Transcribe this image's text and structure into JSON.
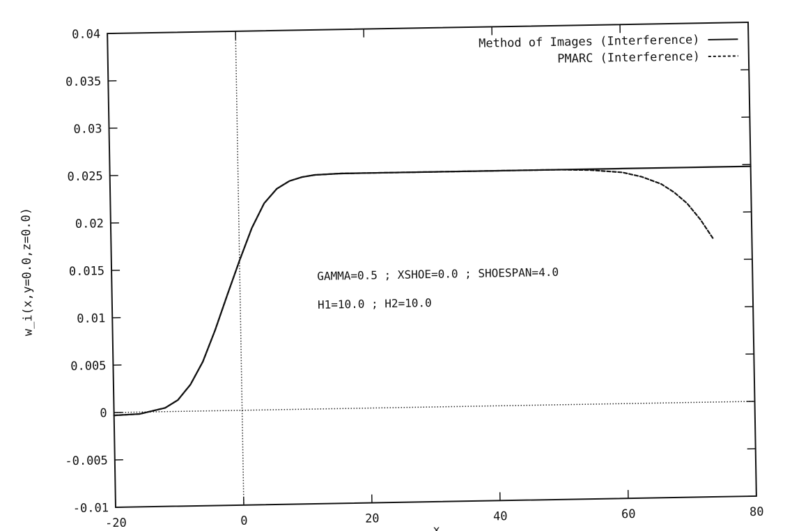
{
  "chart_data": {
    "type": "line",
    "title": "",
    "xlabel": "x",
    "ylabel": "w_i(x,y=0.0,z=0.0)",
    "xlim": [
      -20,
      80
    ],
    "ylim": [
      -0.01,
      0.04
    ],
    "x_ticks": [
      {
        "value": -20,
        "label": "-20"
      },
      {
        "value": 0,
        "label": "0"
      },
      {
        "value": 20,
        "label": "20"
      },
      {
        "value": 40,
        "label": "40"
      },
      {
        "value": 60,
        "label": "60"
      },
      {
        "value": 80,
        "label": "80"
      }
    ],
    "y_ticks": [
      {
        "value": -0.01,
        "label": "-0.01"
      },
      {
        "value": -0.005,
        "label": "-0.005"
      },
      {
        "value": 0,
        "label": "0"
      },
      {
        "value": 0.005,
        "label": "0.005"
      },
      {
        "value": 0.01,
        "label": "0.01"
      },
      {
        "value": 0.015,
        "label": "0.015"
      },
      {
        "value": 0.02,
        "label": "0.02"
      },
      {
        "value": 0.025,
        "label": "0.025"
      },
      {
        "value": 0.03,
        "label": "0.03"
      },
      {
        "value": 0.035,
        "label": "0.035"
      },
      {
        "value": 0.04,
        "label": "0.04"
      }
    ],
    "series": [
      {
        "name": "Method of Images (Interference)",
        "style": "solid",
        "x": [
          -20,
          -16,
          -12,
          -10,
          -8,
          -6,
          -4,
          -2,
          0,
          2,
          4,
          6,
          8,
          10,
          12,
          16,
          20,
          30,
          40,
          50,
          60,
          70,
          80
        ],
        "y": [
          -0.0003,
          -0.0002,
          0.0004,
          0.0012,
          0.0028,
          0.0052,
          0.0085,
          0.0122,
          0.0158,
          0.0192,
          0.0218,
          0.0233,
          0.0241,
          0.0245,
          0.0247,
          0.0248,
          0.0248,
          0.0248,
          0.0248,
          0.0248,
          0.0248,
          0.0248,
          0.0248
        ]
      },
      {
        "name": "PMARC (Interference)",
        "style": "dashed",
        "x": [
          -20,
          -16,
          -12,
          -10,
          -8,
          -6,
          -4,
          -2,
          0,
          2,
          4,
          6,
          8,
          10,
          12,
          16,
          20,
          30,
          40,
          50,
          55,
          60,
          63,
          66,
          68,
          70,
          72,
          74
        ],
        "y": [
          -0.0003,
          -0.0002,
          0.0004,
          0.0012,
          0.0028,
          0.0052,
          0.0085,
          0.0122,
          0.0158,
          0.0192,
          0.0218,
          0.0233,
          0.0241,
          0.0245,
          0.0247,
          0.0248,
          0.0248,
          0.0248,
          0.0248,
          0.0248,
          0.0247,
          0.0244,
          0.0239,
          0.0231,
          0.0222,
          0.021,
          0.0193,
          0.0172
        ]
      }
    ],
    "zero_axes": true,
    "grid": false,
    "legend_position": "top-right",
    "annotations": [
      "GAMMA=0.5 ; XSHOE=0.0 ; SHOESPAN=4.0",
      "H1=10.0 ; H2=10.0"
    ]
  }
}
